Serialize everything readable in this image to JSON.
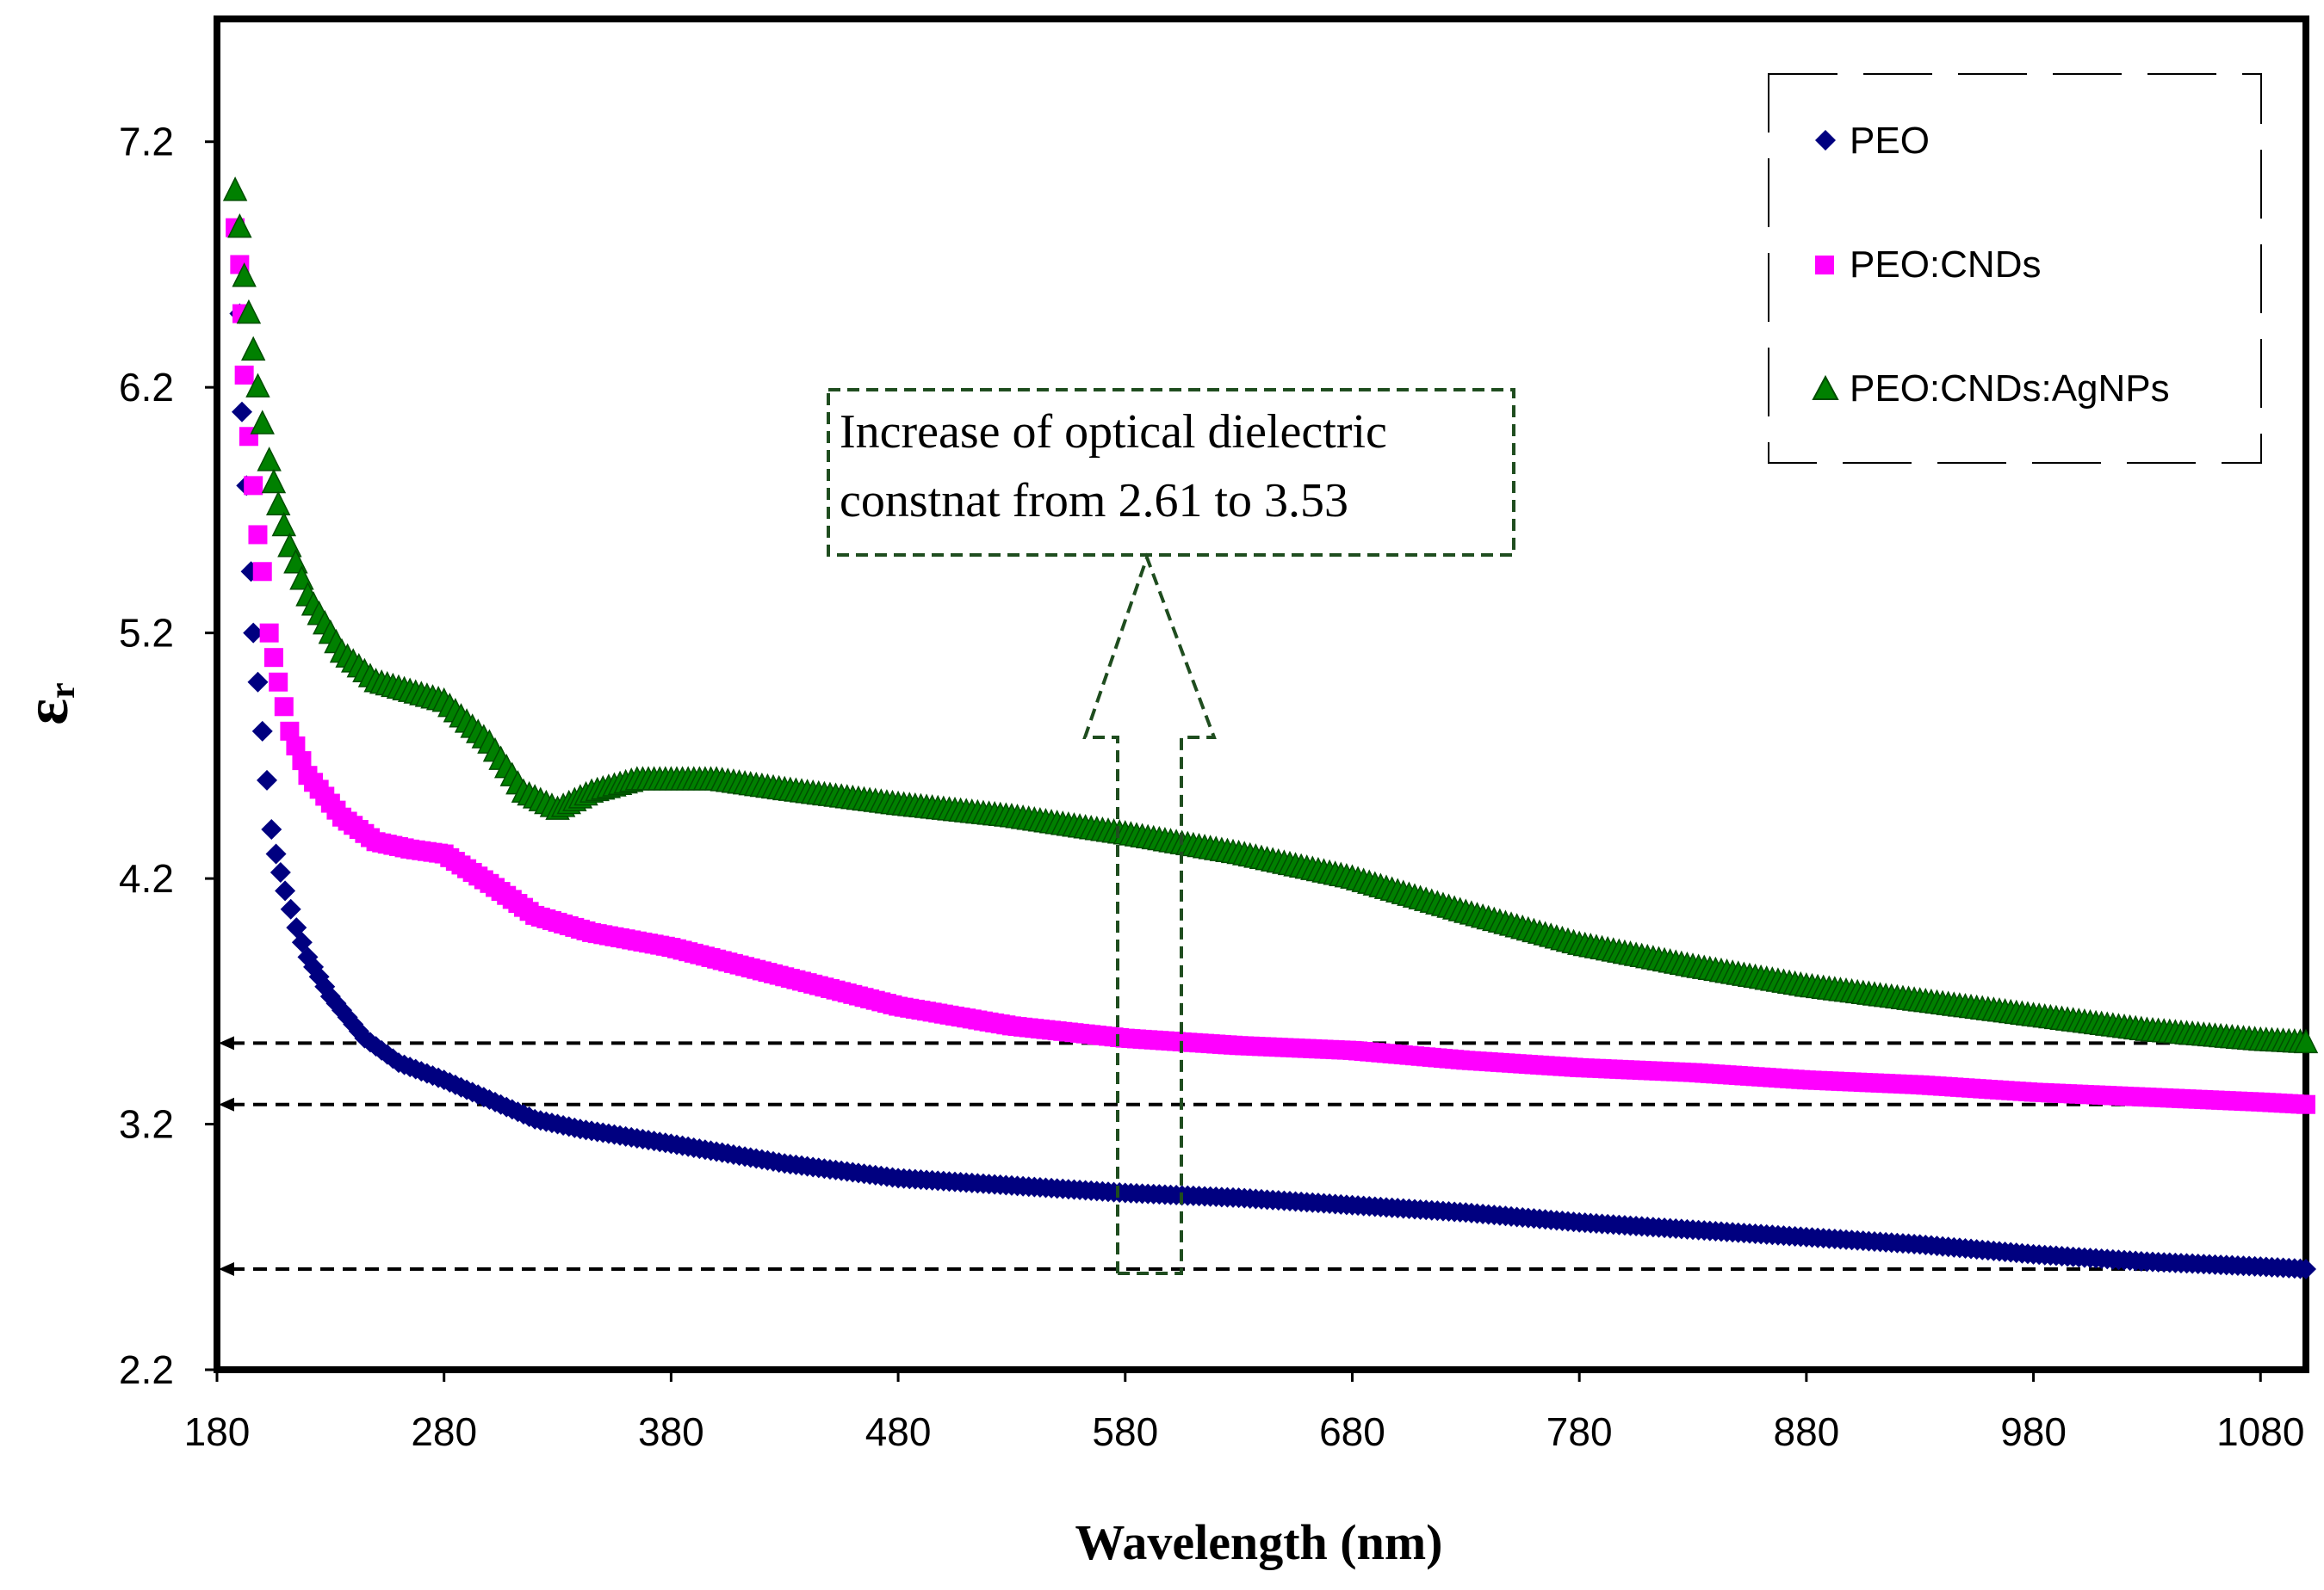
{
  "chart_data": {
    "type": "scatter",
    "title": "",
    "xlabel": "Wavelength (nm)",
    "ylabel_main": "ε",
    "ylabel_sub": "r",
    "xlim": [
      180,
      1100
    ],
    "ylim": [
      2.2,
      7.7
    ],
    "xticks": [
      "180",
      "280",
      "380",
      "480",
      "580",
      "680",
      "780",
      "880",
      "980",
      "1080"
    ],
    "yticks": [
      "2.2",
      "3.2",
      "4.2",
      "5.2",
      "6.2",
      "7.2"
    ],
    "series": [
      {
        "name": "PEO",
        "color": "#000080",
        "marker": "diamond",
        "points": [
          [
            190,
            6.5
          ],
          [
            191,
            6.1
          ],
          [
            193,
            5.8
          ],
          [
            195,
            5.45
          ],
          [
            196,
            5.2
          ],
          [
            198,
            5.0
          ],
          [
            200,
            4.8
          ],
          [
            202,
            4.6
          ],
          [
            204,
            4.4
          ],
          [
            206,
            4.3
          ],
          [
            210,
            4.15
          ],
          [
            215,
            4.0
          ],
          [
            220,
            3.88
          ],
          [
            230,
            3.72
          ],
          [
            245,
            3.55
          ],
          [
            260,
            3.45
          ],
          [
            280,
            3.38
          ],
          [
            300,
            3.3
          ],
          [
            320,
            3.22
          ],
          [
            340,
            3.18
          ],
          [
            380,
            3.12
          ],
          [
            430,
            3.04
          ],
          [
            480,
            2.98
          ],
          [
            530,
            2.95
          ],
          [
            580,
            2.92
          ],
          [
            630,
            2.9
          ],
          [
            680,
            2.87
          ],
          [
            730,
            2.84
          ],
          [
            780,
            2.8
          ],
          [
            830,
            2.77
          ],
          [
            880,
            2.74
          ],
          [
            930,
            2.71
          ],
          [
            980,
            2.67
          ],
          [
            1030,
            2.64
          ],
          [
            1080,
            2.62
          ],
          [
            1100,
            2.61
          ]
        ]
      },
      {
        "name": "PEO:CNDs",
        "color": "#ff00ff",
        "marker": "square",
        "points": [
          [
            188,
            6.85
          ],
          [
            190,
            6.7
          ],
          [
            191,
            6.5
          ],
          [
            192,
            6.25
          ],
          [
            194,
            6.0
          ],
          [
            196,
            5.8
          ],
          [
            198,
            5.6
          ],
          [
            200,
            5.45
          ],
          [
            203,
            5.2
          ],
          [
            207,
            5.0
          ],
          [
            212,
            4.8
          ],
          [
            220,
            4.62
          ],
          [
            235,
            4.45
          ],
          [
            250,
            4.35
          ],
          [
            265,
            4.32
          ],
          [
            280,
            4.3
          ],
          [
            300,
            4.18
          ],
          [
            320,
            4.05
          ],
          [
            345,
            3.98
          ],
          [
            380,
            3.92
          ],
          [
            430,
            3.8
          ],
          [
            480,
            3.68
          ],
          [
            530,
            3.6
          ],
          [
            580,
            3.55
          ],
          [
            630,
            3.52
          ],
          [
            680,
            3.5
          ],
          [
            730,
            3.46
          ],
          [
            780,
            3.43
          ],
          [
            830,
            3.41
          ],
          [
            880,
            3.38
          ],
          [
            930,
            3.36
          ],
          [
            980,
            3.33
          ],
          [
            1030,
            3.31
          ],
          [
            1080,
            3.29
          ],
          [
            1100,
            3.28
          ]
        ]
      },
      {
        "name": "PEO:CNDs:AgNPs",
        "color": "#008000",
        "marker": "triangle",
        "points": [
          [
            188,
            7.0
          ],
          [
            190,
            6.85
          ],
          [
            192,
            6.65
          ],
          [
            194,
            6.5
          ],
          [
            196,
            6.35
          ],
          [
            198,
            6.2
          ],
          [
            200,
            6.05
          ],
          [
            203,
            5.9
          ],
          [
            207,
            5.72
          ],
          [
            212,
            5.55
          ],
          [
            220,
            5.35
          ],
          [
            235,
            5.12
          ],
          [
            250,
            5.0
          ],
          [
            265,
            4.96
          ],
          [
            280,
            4.92
          ],
          [
            300,
            4.75
          ],
          [
            315,
            4.55
          ],
          [
            330,
            4.48
          ],
          [
            345,
            4.55
          ],
          [
            365,
            4.6
          ],
          [
            400,
            4.6
          ],
          [
            430,
            4.56
          ],
          [
            480,
            4.5
          ],
          [
            530,
            4.45
          ],
          [
            580,
            4.38
          ],
          [
            630,
            4.3
          ],
          [
            680,
            4.2
          ],
          [
            730,
            4.06
          ],
          [
            780,
            3.93
          ],
          [
            830,
            3.84
          ],
          [
            880,
            3.76
          ],
          [
            930,
            3.7
          ],
          [
            980,
            3.64
          ],
          [
            1030,
            3.58
          ],
          [
            1080,
            3.54
          ],
          [
            1100,
            3.53
          ]
        ]
      }
    ],
    "reference_lines_y": [
      3.53,
      3.28,
      2.61
    ],
    "annotation": {
      "lines": [
        "Increase of optical dielectric",
        "constnat from 2.61 to 3.53"
      ]
    },
    "legend_position": "top-right"
  }
}
